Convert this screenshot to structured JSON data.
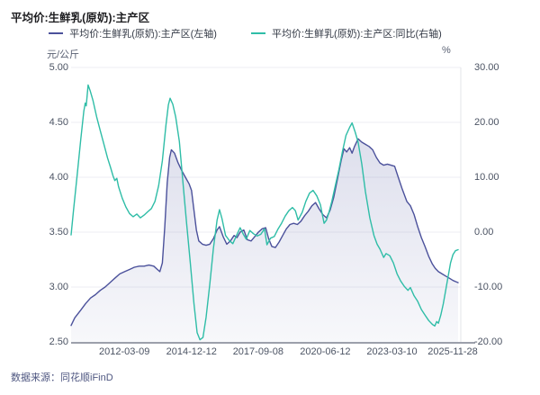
{
  "header": {
    "title": "平均价:生鲜乳(原奶):主产区"
  },
  "legend": {
    "items": [
      {
        "label": "平均价:生鲜乳(原奶):主产区(左轴)",
        "color": "#4b519b"
      },
      {
        "label": "平均价:生鲜乳(原奶):主产区:同比(右轴)",
        "color": "#2fbda7"
      }
    ]
  },
  "footer": {
    "source_label": "数据来源：同花顺iFinD"
  },
  "colors": {
    "price_line": "#4b519b",
    "yoy_line": "#2fbda7",
    "area_fill": "#686eac",
    "gridline": "#ededf3",
    "axis_line": "#9ca0ab",
    "right_border": "#e3e4ea",
    "tick_text": "#4b5363"
  },
  "chart_data": {
    "type": "line",
    "title": "平均价:生鲜乳(原奶):主产区",
    "grid": true,
    "legend_position": "top",
    "left_axis": {
      "unit": "元/公斤",
      "min": 2.5,
      "max": 5.0,
      "ticks": [
        "5.00",
        "4.50",
        "4.00",
        "3.50",
        "3.00",
        "2.50"
      ]
    },
    "right_axis": {
      "unit": "%",
      "min": -20.0,
      "max": 30.0,
      "ticks": [
        "30.00",
        "20.00",
        "10.00",
        "0.00",
        "-10.00",
        "-20.00"
      ]
    },
    "x_ticks": [
      "2012-03-09",
      "2014-12-12",
      "2017-09-08",
      "2020-06-12",
      "2023-03-10",
      "2025-11-28"
    ],
    "x_tick_years": [
      2012.19,
      2014.95,
      2017.69,
      2020.45,
      2023.19,
      2025.91
    ],
    "x_domain": [
      2010.0,
      2025.91
    ],
    "series": [
      {
        "name": "平均价:生鲜乳(原奶):主产区(左轴)",
        "axis": "left",
        "unit": "元/公斤",
        "color": "#4b519b",
        "area": true,
        "points": [
          [
            2010.0,
            2.65
          ],
          [
            2010.15,
            2.72
          ],
          [
            2010.4,
            2.79
          ],
          [
            2010.6,
            2.85
          ],
          [
            2010.8,
            2.9
          ],
          [
            2011.0,
            2.93
          ],
          [
            2011.2,
            2.97
          ],
          [
            2011.4,
            3.0
          ],
          [
            2011.6,
            3.04
          ],
          [
            2011.8,
            3.08
          ],
          [
            2012.0,
            3.12
          ],
          [
            2012.2,
            3.14
          ],
          [
            2012.4,
            3.16
          ],
          [
            2012.6,
            3.18
          ],
          [
            2012.8,
            3.19
          ],
          [
            2013.0,
            3.19
          ],
          [
            2013.2,
            3.2
          ],
          [
            2013.4,
            3.19
          ],
          [
            2013.55,
            3.16
          ],
          [
            2013.65,
            3.14
          ],
          [
            2013.75,
            3.22
          ],
          [
            2013.85,
            3.55
          ],
          [
            2013.95,
            3.95
          ],
          [
            2014.05,
            4.18
          ],
          [
            2014.12,
            4.25
          ],
          [
            2014.25,
            4.22
          ],
          [
            2014.4,
            4.13
          ],
          [
            2014.55,
            4.06
          ],
          [
            2014.7,
            4.0
          ],
          [
            2014.85,
            3.94
          ],
          [
            2014.95,
            3.88
          ],
          [
            2015.05,
            3.7
          ],
          [
            2015.15,
            3.52
          ],
          [
            2015.25,
            3.42
          ],
          [
            2015.4,
            3.39
          ],
          [
            2015.55,
            3.38
          ],
          [
            2015.7,
            3.39
          ],
          [
            2015.85,
            3.44
          ],
          [
            2016.0,
            3.52
          ],
          [
            2016.1,
            3.55
          ],
          [
            2016.25,
            3.46
          ],
          [
            2016.4,
            3.39
          ],
          [
            2016.55,
            3.42
          ],
          [
            2016.7,
            3.47
          ],
          [
            2016.82,
            3.45
          ],
          [
            2016.95,
            3.5
          ],
          [
            2017.1,
            3.52
          ],
          [
            2017.25,
            3.43
          ],
          [
            2017.4,
            3.42
          ],
          [
            2017.55,
            3.46
          ],
          [
            2017.7,
            3.5
          ],
          [
            2017.85,
            3.53
          ],
          [
            2018.0,
            3.54
          ],
          [
            2018.12,
            3.44
          ],
          [
            2018.25,
            3.37
          ],
          [
            2018.4,
            3.36
          ],
          [
            2018.55,
            3.41
          ],
          [
            2018.7,
            3.47
          ],
          [
            2018.85,
            3.53
          ],
          [
            2019.0,
            3.57
          ],
          [
            2019.15,
            3.58
          ],
          [
            2019.3,
            3.57
          ],
          [
            2019.45,
            3.6
          ],
          [
            2019.6,
            3.65
          ],
          [
            2019.75,
            3.69
          ],
          [
            2019.9,
            3.74
          ],
          [
            2020.05,
            3.77
          ],
          [
            2020.2,
            3.71
          ],
          [
            2020.35,
            3.66
          ],
          [
            2020.5,
            3.63
          ],
          [
            2020.65,
            3.7
          ],
          [
            2020.8,
            3.82
          ],
          [
            2020.95,
            3.98
          ],
          [
            2021.1,
            4.15
          ],
          [
            2021.22,
            4.26
          ],
          [
            2021.33,
            4.23
          ],
          [
            2021.45,
            4.27
          ],
          [
            2021.55,
            4.22
          ],
          [
            2021.65,
            4.28
          ],
          [
            2021.8,
            4.35
          ],
          [
            2021.95,
            4.32
          ],
          [
            2022.1,
            4.3
          ],
          [
            2022.25,
            4.28
          ],
          [
            2022.4,
            4.25
          ],
          [
            2022.55,
            4.18
          ],
          [
            2022.7,
            4.13
          ],
          [
            2022.85,
            4.11
          ],
          [
            2023.0,
            4.12
          ],
          [
            2023.15,
            4.11
          ],
          [
            2023.3,
            4.1
          ],
          [
            2023.45,
            4.0
          ],
          [
            2023.6,
            3.9
          ],
          [
            2023.8,
            3.78
          ],
          [
            2023.95,
            3.74
          ],
          [
            2024.1,
            3.66
          ],
          [
            2024.25,
            3.55
          ],
          [
            2024.4,
            3.45
          ],
          [
            2024.55,
            3.37
          ],
          [
            2024.7,
            3.28
          ],
          [
            2024.85,
            3.21
          ],
          [
            2024.97,
            3.17
          ],
          [
            2025.1,
            3.14
          ],
          [
            2025.25,
            3.12
          ],
          [
            2025.4,
            3.1
          ],
          [
            2025.55,
            3.08
          ],
          [
            2025.7,
            3.06
          ],
          [
            2025.8,
            3.05
          ],
          [
            2025.91,
            3.04
          ]
        ]
      },
      {
        "name": "平均价:生鲜乳(原奶):主产区:同比(右轴)",
        "axis": "right",
        "unit": "%",
        "color": "#2fbda7",
        "area": false,
        "points": [
          [
            2010.0,
            -0.5
          ],
          [
            2010.1,
            4.0
          ],
          [
            2010.25,
            10.5
          ],
          [
            2010.4,
            17.0
          ],
          [
            2010.52,
            22.0
          ],
          [
            2010.58,
            23.5
          ],
          [
            2010.62,
            23.0
          ],
          [
            2010.7,
            26.8
          ],
          [
            2010.78,
            25.8
          ],
          [
            2010.9,
            24.0
          ],
          [
            2011.05,
            21.0
          ],
          [
            2011.2,
            18.5
          ],
          [
            2011.35,
            16.0
          ],
          [
            2011.5,
            13.5
          ],
          [
            2011.62,
            11.8
          ],
          [
            2011.72,
            10.3
          ],
          [
            2011.8,
            9.4
          ],
          [
            2011.88,
            9.8
          ],
          [
            2011.95,
            8.3
          ],
          [
            2012.1,
            6.2
          ],
          [
            2012.25,
            4.6
          ],
          [
            2012.4,
            3.4
          ],
          [
            2012.55,
            2.8
          ],
          [
            2012.7,
            3.3
          ],
          [
            2012.85,
            2.6
          ],
          [
            2013.0,
            3.1
          ],
          [
            2013.15,
            3.7
          ],
          [
            2013.3,
            4.3
          ],
          [
            2013.45,
            5.6
          ],
          [
            2013.6,
            8.5
          ],
          [
            2013.75,
            13.0
          ],
          [
            2013.9,
            19.5
          ],
          [
            2014.0,
            23.2
          ],
          [
            2014.07,
            24.4
          ],
          [
            2014.18,
            23.3
          ],
          [
            2014.3,
            21.0
          ],
          [
            2014.45,
            16.5
          ],
          [
            2014.6,
            9.0
          ],
          [
            2014.75,
            1.5
          ],
          [
            2014.9,
            -5.5
          ],
          [
            2015.05,
            -13.0
          ],
          [
            2015.18,
            -18.3
          ],
          [
            2015.3,
            -19.6
          ],
          [
            2015.42,
            -19.2
          ],
          [
            2015.55,
            -15.5
          ],
          [
            2015.7,
            -9.5
          ],
          [
            2015.85,
            -3.0
          ],
          [
            2016.0,
            2.2
          ],
          [
            2016.1,
            4.1
          ],
          [
            2016.2,
            2.5
          ],
          [
            2016.35,
            -0.6
          ],
          [
            2016.5,
            -1.5
          ],
          [
            2016.65,
            -2.1
          ],
          [
            2016.8,
            -0.6
          ],
          [
            2016.95,
            0.8
          ],
          [
            2017.08,
            -0.4
          ],
          [
            2017.2,
            -1.3
          ],
          [
            2017.35,
            0.3
          ],
          [
            2017.5,
            -0.3
          ],
          [
            2017.65,
            -0.7
          ],
          [
            2017.8,
            -0.4
          ],
          [
            2017.95,
            0.6
          ],
          [
            2018.05,
            -2.3
          ],
          [
            2018.2,
            -1.1
          ],
          [
            2018.35,
            -0.8
          ],
          [
            2018.5,
            0.5
          ],
          [
            2018.65,
            1.6
          ],
          [
            2018.8,
            2.9
          ],
          [
            2018.95,
            3.9
          ],
          [
            2019.1,
            4.5
          ],
          [
            2019.22,
            3.9
          ],
          [
            2019.33,
            2.2
          ],
          [
            2019.5,
            3.6
          ],
          [
            2019.65,
            5.6
          ],
          [
            2019.8,
            7.1
          ],
          [
            2019.95,
            7.6
          ],
          [
            2020.1,
            6.6
          ],
          [
            2020.25,
            5.0
          ],
          [
            2020.4,
            1.6
          ],
          [
            2020.5,
            2.2
          ],
          [
            2020.6,
            3.6
          ],
          [
            2020.72,
            5.6
          ],
          [
            2020.85,
            8.2
          ],
          [
            2021.0,
            11.2
          ],
          [
            2021.15,
            14.6
          ],
          [
            2021.3,
            17.6
          ],
          [
            2021.45,
            19.1
          ],
          [
            2021.55,
            19.9
          ],
          [
            2021.68,
            18.2
          ],
          [
            2021.8,
            16.4
          ],
          [
            2021.95,
            12.4
          ],
          [
            2022.1,
            7.4
          ],
          [
            2022.28,
            2.6
          ],
          [
            2022.45,
            -0.6
          ],
          [
            2022.58,
            -2.2
          ],
          [
            2022.7,
            -3.1
          ],
          [
            2022.85,
            -4.6
          ],
          [
            2022.95,
            -3.9
          ],
          [
            2023.1,
            -4.3
          ],
          [
            2023.25,
            -5.6
          ],
          [
            2023.4,
            -7.6
          ],
          [
            2023.55,
            -8.9
          ],
          [
            2023.7,
            -9.9
          ],
          [
            2023.85,
            -10.6
          ],
          [
            2023.95,
            -10.1
          ],
          [
            2024.1,
            -11.6
          ],
          [
            2024.25,
            -12.6
          ],
          [
            2024.4,
            -14.1
          ],
          [
            2024.55,
            -15.1
          ],
          [
            2024.7,
            -16.1
          ],
          [
            2024.85,
            -16.8
          ],
          [
            2024.95,
            -17.1
          ],
          [
            2025.03,
            -16.3
          ],
          [
            2025.1,
            -16.6
          ],
          [
            2025.2,
            -15.1
          ],
          [
            2025.3,
            -13.1
          ],
          [
            2025.4,
            -10.6
          ],
          [
            2025.5,
            -8.1
          ],
          [
            2025.6,
            -5.6
          ],
          [
            2025.7,
            -4.1
          ],
          [
            2025.8,
            -3.4
          ],
          [
            2025.91,
            -3.2
          ]
        ]
      }
    ]
  }
}
